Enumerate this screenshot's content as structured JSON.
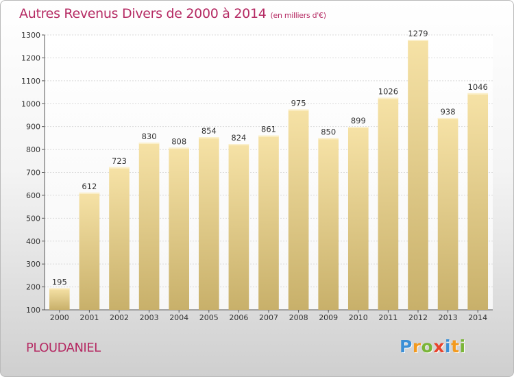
{
  "title": "Autres Revenus Divers de 2000 à 2014",
  "subtitle": "(en milliers d'€)",
  "city": "PLOUDANIEL",
  "logo": {
    "letters": [
      "P",
      "r",
      "o",
      "x",
      "i",
      "t",
      "i"
    ],
    "colors": [
      "#3b8fd6",
      "#f39a1e",
      "#7ab538",
      "#e8432d",
      "#3b8fd6",
      "#f39a1e",
      "#7ab538"
    ]
  },
  "colors": {
    "accent": "#b52a63",
    "bar_top": "#f6e2a6",
    "bar_bottom": "#c8b06a"
  },
  "chart_data": {
    "type": "bar",
    "categories": [
      "2000",
      "2001",
      "2002",
      "2003",
      "2004",
      "2005",
      "2006",
      "2007",
      "2008",
      "2009",
      "2010",
      "2011",
      "2012",
      "2013",
      "2014"
    ],
    "values": [
      195,
      612,
      723,
      830,
      808,
      854,
      824,
      861,
      975,
      850,
      899,
      1026,
      1279,
      938,
      1046
    ],
    "ylim": [
      100,
      1300
    ],
    "yticks": [
      100,
      200,
      300,
      400,
      500,
      600,
      700,
      800,
      900,
      1000,
      1100,
      1200,
      1300
    ],
    "grid": true,
    "data_labels": true
  }
}
